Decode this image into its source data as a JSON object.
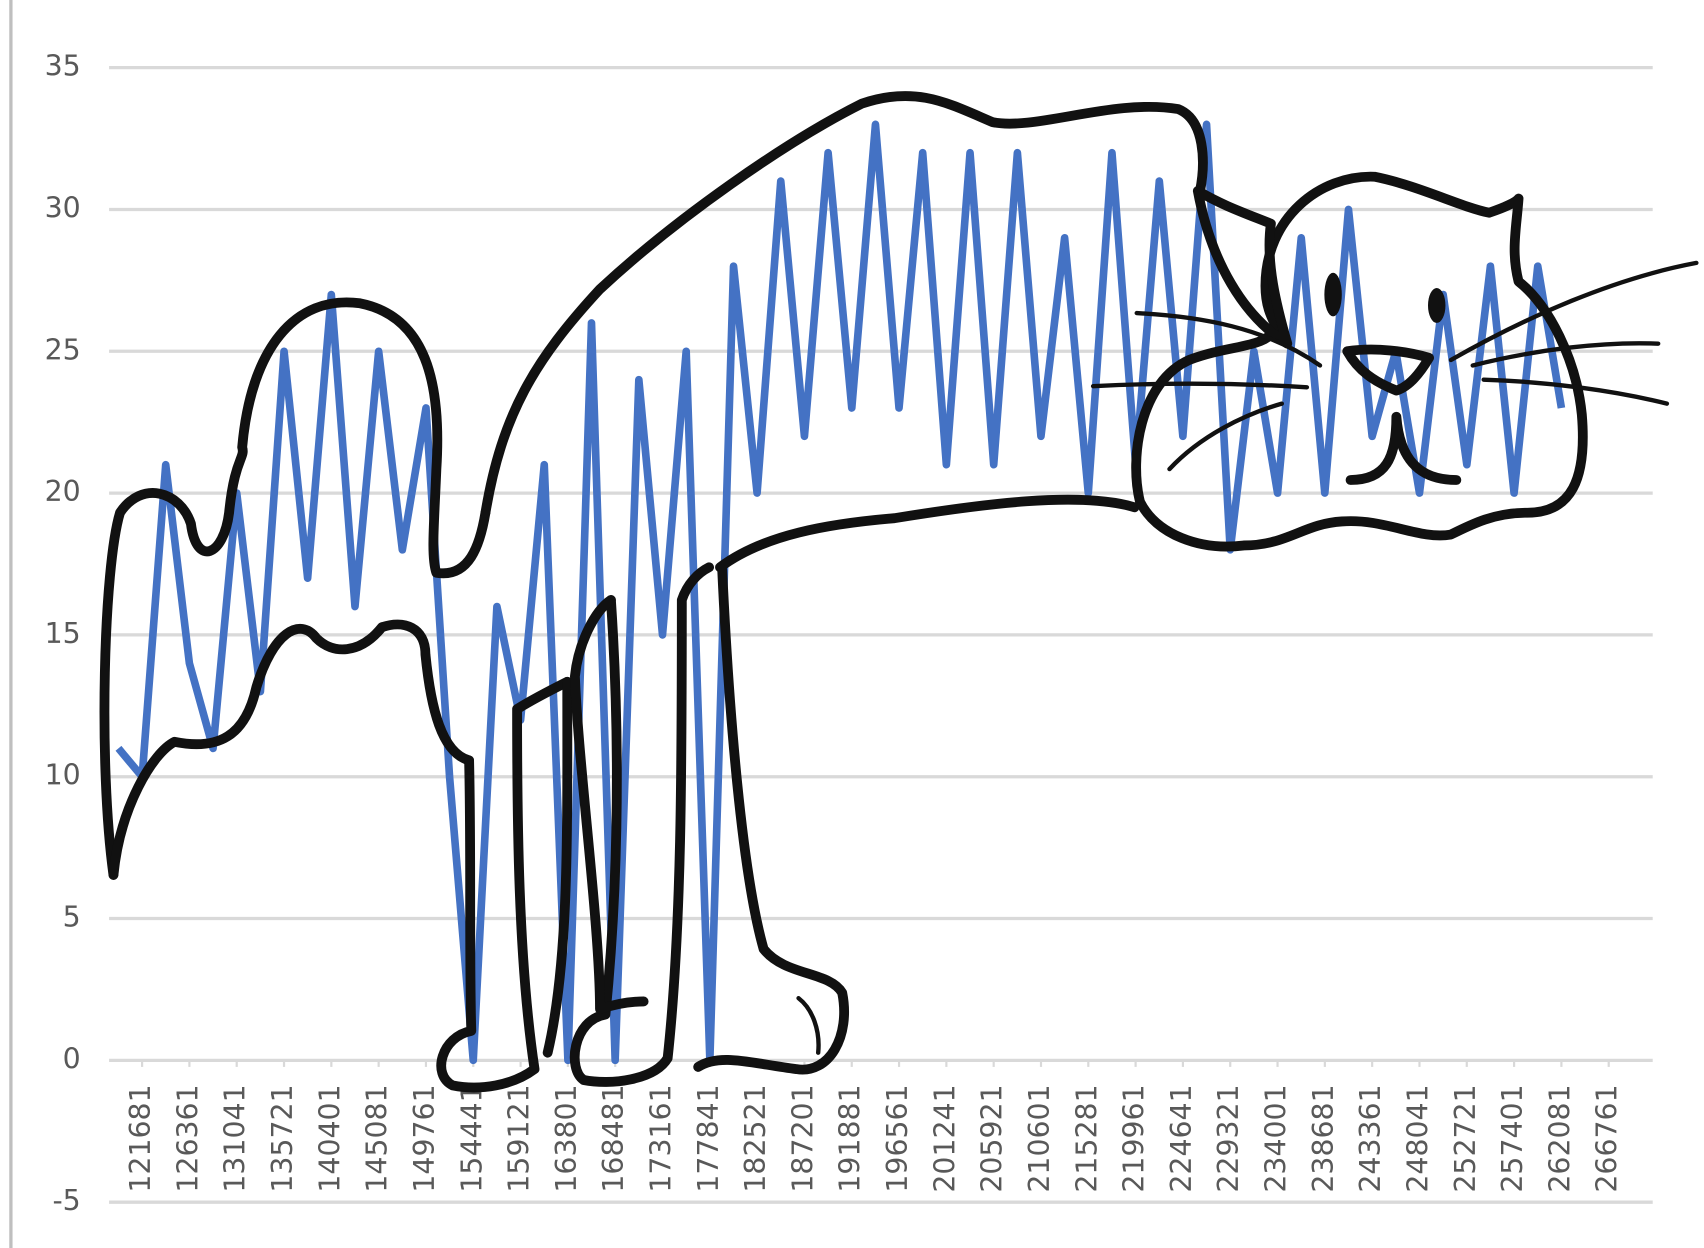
{
  "chart_data": {
    "type": "line",
    "color": "#4472c4",
    "grid": true,
    "x": [
      119341,
      121681,
      124021,
      126361,
      128701,
      131041,
      133381,
      135721,
      138061,
      140401,
      142741,
      145081,
      147421,
      149761,
      152101,
      154441,
      156781,
      159121,
      161461,
      163801,
      166141,
      168481,
      170821,
      173161,
      175501,
      177841,
      180181,
      182521,
      184861,
      187201,
      189541,
      191881,
      194221,
      196561,
      198901,
      201241,
      203581,
      205921,
      208261,
      210601,
      212941,
      215281,
      217621,
      219961,
      222301,
      224641,
      226981,
      229321,
      231661,
      234001,
      236341,
      238681,
      241021,
      243361,
      245701,
      248041,
      250381,
      252721,
      255061,
      257401,
      259741,
      262081
    ],
    "values": [
      11,
      10,
      21,
      14,
      11,
      20,
      13,
      25,
      17,
      27,
      16,
      25,
      18,
      23,
      10,
      0,
      16,
      12,
      21,
      0,
      26,
      0,
      24,
      15,
      25,
      0,
      28,
      20,
      31,
      22,
      32,
      23,
      33,
      23,
      32,
      21,
      32,
      21,
      32,
      22,
      29,
      20,
      32,
      21,
      31,
      22,
      33,
      18,
      25,
      20,
      29,
      20,
      30,
      22,
      25,
      20,
      27,
      21,
      28,
      20,
      28,
      23
    ],
    "xlim": [
      118416,
      271115
    ],
    "xticks": [
      121681,
      126361,
      131041,
      135721,
      140401,
      145081,
      149761,
      154441,
      159121,
      163801,
      168481,
      173161,
      177841,
      182521,
      187201,
      191881,
      196561,
      201241,
      205921,
      210601,
      215281,
      219961,
      224641,
      229321,
      234001,
      238681,
      243361,
      248041,
      252721,
      257401,
      262081,
      266761
    ],
    "ylim": [
      -5,
      35
    ],
    "yticks": [
      -5,
      0,
      5,
      10,
      15,
      20,
      25,
      30,
      35
    ]
  }
}
